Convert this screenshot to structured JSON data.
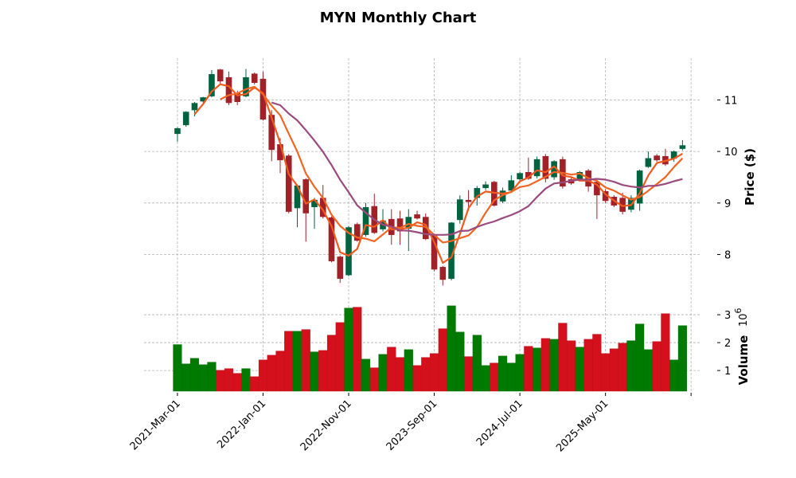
{
  "chart_data": {
    "type": "candlestick",
    "title": "MYN Monthly Chart",
    "ylabel": "Price ($)",
    "volume_label": "Volume",
    "volume_exponent": "10",
    "volume_exponent_power": "6",
    "start_month": "2021-03",
    "x_tick_labels": [
      "2021-Mar-01",
      "2022-Jan-01",
      "2022-Nov-01",
      "2023-Sep-01",
      "2024-Jul-01",
      "2025-May-01"
    ],
    "x_tick_indices": [
      0,
      10,
      20,
      30,
      40,
      50,
      60
    ],
    "price_ticks": [
      "8",
      "9",
      "10",
      "11"
    ],
    "volume_ticks": [
      "1",
      "2",
      "3"
    ],
    "ylim": [
      7.22,
      11.81
    ],
    "volume_ylim": [
      0.26,
      3.63
    ],
    "moving_averages": [
      3,
      6,
      12
    ],
    "colors": {
      "up": "#006340",
      "down": "#a02128",
      "vol_up": "#007a00",
      "vol_down": "#d4101c",
      "ma3": "#f05a1e",
      "ma6": "#f26522",
      "ma12": "#9b4a7e"
    },
    "ohlc": [
      [
        10.34,
        10.47,
        10.19,
        10.45
      ],
      [
        10.51,
        10.78,
        10.48,
        10.77
      ],
      [
        10.8,
        10.96,
        10.68,
        10.94
      ],
      [
        10.97,
        11.06,
        10.95,
        11.05
      ],
      [
        11.07,
        11.58,
        11.05,
        11.5
      ],
      [
        11.59,
        11.6,
        11.3,
        11.36
      ],
      [
        11.44,
        11.55,
        10.9,
        10.94
      ],
      [
        11.13,
        11.18,
        10.9,
        10.96
      ],
      [
        11.07,
        11.6,
        11.05,
        11.44
      ],
      [
        11.51,
        11.53,
        11.3,
        11.33
      ],
      [
        11.41,
        11.55,
        10.6,
        10.62
      ],
      [
        10.71,
        10.8,
        9.81,
        10.03
      ],
      [
        10.14,
        10.26,
        9.58,
        9.83
      ],
      [
        9.92,
        9.95,
        8.8,
        8.83
      ],
      [
        8.9,
        9.36,
        8.53,
        9.34
      ],
      [
        9.46,
        9.48,
        8.25,
        8.8
      ],
      [
        8.92,
        9.1,
        8.5,
        9.06
      ],
      [
        9.1,
        9.35,
        8.7,
        8.73
      ],
      [
        8.72,
        8.74,
        7.85,
        7.87
      ],
      [
        7.96,
        7.98,
        7.45,
        7.53
      ],
      [
        7.6,
        8.55,
        7.58,
        8.53
      ],
      [
        8.59,
        8.62,
        8.25,
        8.27
      ],
      [
        8.38,
        9.0,
        8.35,
        8.92
      ],
      [
        8.94,
        9.18,
        8.4,
        8.42
      ],
      [
        8.49,
        8.88,
        8.45,
        8.66
      ],
      [
        8.69,
        8.88,
        8.19,
        8.38
      ],
      [
        8.7,
        8.85,
        8.19,
        8.45
      ],
      [
        8.5,
        8.88,
        8.07,
        8.73
      ],
      [
        8.78,
        8.85,
        8.68,
        8.7
      ],
      [
        8.73,
        8.8,
        8.28,
        8.3
      ],
      [
        8.37,
        8.4,
        7.68,
        7.71
      ],
      [
        7.76,
        7.78,
        7.4,
        7.51
      ],
      [
        7.53,
        8.63,
        7.5,
        8.62
      ],
      [
        8.67,
        9.15,
        8.6,
        9.07
      ],
      [
        9.06,
        9.25,
        8.85,
        9.02
      ],
      [
        9.1,
        9.33,
        8.95,
        9.29
      ],
      [
        9.29,
        9.42,
        9.25,
        9.36
      ],
      [
        9.41,
        9.43,
        8.93,
        8.95
      ],
      [
        9.03,
        9.3,
        9.0,
        9.24
      ],
      [
        9.24,
        9.54,
        9.22,
        9.44
      ],
      [
        9.46,
        9.6,
        9.42,
        9.58
      ],
      [
        9.6,
        9.88,
        9.45,
        9.47
      ],
      [
        9.52,
        9.9,
        9.48,
        9.85
      ],
      [
        9.91,
        9.95,
        9.4,
        9.47
      ],
      [
        9.5,
        9.83,
        9.45,
        9.81
      ],
      [
        9.85,
        9.9,
        9.28,
        9.32
      ],
      [
        9.46,
        9.5,
        9.35,
        9.38
      ],
      [
        9.46,
        9.62,
        9.43,
        9.6
      ],
      [
        9.63,
        9.66,
        9.22,
        9.32
      ],
      [
        9.41,
        9.45,
        8.69,
        9.15
      ],
      [
        9.23,
        9.27,
        9.0,
        9.04
      ],
      [
        9.12,
        9.15,
        8.92,
        8.95
      ],
      [
        9.1,
        9.2,
        8.78,
        8.83
      ],
      [
        8.87,
        9.15,
        8.82,
        9.1
      ],
      [
        8.99,
        9.65,
        8.85,
        9.63
      ],
      [
        9.7,
        10.0,
        9.68,
        9.87
      ],
      [
        9.92,
        9.95,
        9.8,
        9.83
      ],
      [
        9.91,
        10.05,
        9.72,
        9.75
      ],
      [
        9.86,
        10.02,
        9.8,
        10.0
      ],
      [
        10.05,
        10.22,
        10.02,
        10.12
      ]
    ],
    "volume_millions": [
      1.93,
      1.24,
      1.44,
      1.21,
      1.3,
      1.01,
      1.07,
      0.9,
      1.07,
      0.78,
      1.38,
      1.55,
      1.7,
      2.41,
      2.41,
      2.47,
      1.67,
      1.72,
      2.27,
      2.72,
      3.24,
      3.27,
      1.41,
      1.1,
      1.58,
      1.84,
      1.47,
      1.75,
      1.18,
      1.47,
      1.61,
      2.5,
      3.32,
      2.38,
      1.5,
      2.27,
      1.18,
      1.27,
      1.52,
      1.27,
      1.58,
      1.87,
      1.81,
      2.15,
      2.12,
      2.7,
      2.07,
      1.84,
      2.12,
      2.3,
      1.61,
      1.78,
      1.98,
      2.07,
      2.67,
      1.75,
      2.04,
      3.04,
      1.38,
      2.61
    ]
  }
}
